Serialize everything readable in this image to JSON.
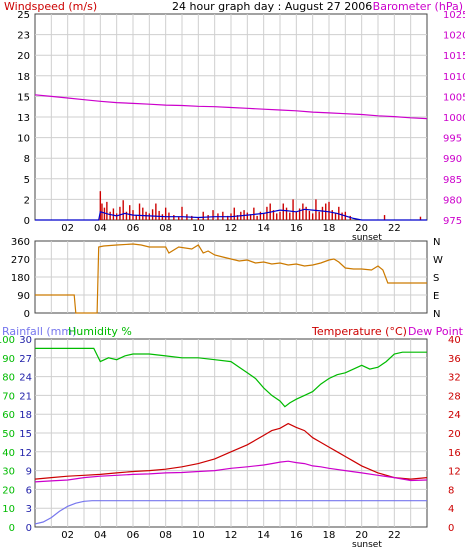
{
  "colors": {
    "windspeed": "#cc0000",
    "wind_avg": "#0000cc",
    "barometer": "#cc00cc",
    "direction": "#cc7a00",
    "rainfall": "#7777ee",
    "humidity": "#00bb00",
    "temperature": "#cc0000",
    "dewpoint": "#cc00cc",
    "grid": "#cfcfcf",
    "label_blue": "#2222aa"
  },
  "chart_data": [
    {
      "type": "line",
      "title": "24 hour graph day : August 27 2006",
      "left_axis_label": "Windspeed (m/s)",
      "right_axis_label": "Barometer (hPa)",
      "annotation": "sunset",
      "sunset_x": 19.5,
      "left_ticks": [
        "0",
        "2",
        "5",
        "8",
        "10",
        "13",
        "15",
        "18",
        "20",
        "23",
        "25"
      ],
      "right_ticks": [
        "975",
        "980",
        "985",
        "990",
        "995",
        "1000",
        "1005",
        "1010",
        "1015",
        "1020",
        "1025"
      ],
      "x_ticks": [
        "02",
        "04",
        "06",
        "08",
        "10",
        "12",
        "14",
        "16",
        "18",
        "20",
        "22"
      ],
      "xlim": [
        0,
        24
      ],
      "ylim_left": [
        0,
        25
      ],
      "ylim_right": [
        975,
        1025
      ],
      "series": [
        {
          "name": "Barometer (hPa)",
          "axis": "right",
          "x": [
            0,
            1,
            2,
            3,
            4,
            5,
            6,
            7,
            8,
            9,
            10,
            11,
            12,
            13,
            14,
            15,
            16,
            17,
            18,
            19,
            20,
            21,
            22,
            23,
            24
          ],
          "y": [
            1005.4,
            1005.0,
            1004.6,
            1004.2,
            1003.8,
            1003.5,
            1003.3,
            1003.1,
            1002.9,
            1002.8,
            1002.6,
            1002.5,
            1002.3,
            1002.1,
            1001.9,
            1001.7,
            1001.5,
            1001.2,
            1001.0,
            1000.8,
            1000.6,
            1000.3,
            1000.1,
            999.8,
            999.6
          ]
        },
        {
          "name": "Windspeed (m/s)",
          "axis": "left",
          "style": "bars",
          "x": [
            4.0,
            4.1,
            4.25,
            4.4,
            4.6,
            4.8,
            5.0,
            5.2,
            5.4,
            5.6,
            5.8,
            6.0,
            6.2,
            6.4,
            6.6,
            6.8,
            7.0,
            7.2,
            7.4,
            7.6,
            7.8,
            8.0,
            8.2,
            8.5,
            8.8,
            9.0,
            9.3,
            9.6,
            10.0,
            10.3,
            10.6,
            10.9,
            11.2,
            11.5,
            11.8,
            12.0,
            12.2,
            12.4,
            12.6,
            12.8,
            13.0,
            13.2,
            13.4,
            13.6,
            13.8,
            14.0,
            14.2,
            14.4,
            14.6,
            14.8,
            15.0,
            15.2,
            15.4,
            15.6,
            15.8,
            16.0,
            16.2,
            16.4,
            16.6,
            16.8,
            17.0,
            17.2,
            17.4,
            17.6,
            17.8,
            18.0,
            18.2,
            18.4,
            18.6,
            18.8,
            19.0,
            19.3,
            21.4,
            23.6
          ],
          "y": [
            3.5,
            2.0,
            1.5,
            2.2,
            1.0,
            1.4,
            0.8,
            1.6,
            2.4,
            1.0,
            1.8,
            1.2,
            0.6,
            2.0,
            1.5,
            1.0,
            0.8,
            1.3,
            2.0,
            1.1,
            0.7,
            1.5,
            0.9,
            0.6,
            0.4,
            1.6,
            0.7,
            0.5,
            0.3,
            1.0,
            0.6,
            1.2,
            0.8,
            1.0,
            0.5,
            0.8,
            1.5,
            0.6,
            1.0,
            1.2,
            0.9,
            0.7,
            1.5,
            0.5,
            1.0,
            0.8,
            1.6,
            2.0,
            1.2,
            0.8,
            1.0,
            2.0,
            1.5,
            0.9,
            2.5,
            1.0,
            1.4,
            2.0,
            1.6,
            1.1,
            0.8,
            2.5,
            1.0,
            1.6,
            2.0,
            2.2,
            1.2,
            0.8,
            1.6,
            0.9,
            1.0,
            0.5,
            0.6,
            0.4
          ]
        },
        {
          "name": "Average windspeed",
          "axis": "left",
          "x": [
            0,
            3.9,
            4.0,
            4.5,
            5.0,
            5.5,
            6.0,
            7.0,
            8.0,
            9.0,
            10.0,
            11.0,
            12.0,
            13.0,
            14.0,
            14.5,
            15.0,
            15.5,
            16.0,
            16.5,
            17.0,
            17.5,
            18.0,
            18.5,
            19.0,
            19.5,
            20.0,
            24
          ],
          "y": [
            0,
            0,
            1.0,
            0.7,
            0.5,
            0.8,
            0.6,
            0.5,
            0.4,
            0.4,
            0.3,
            0.4,
            0.4,
            0.6,
            0.8,
            1.0,
            1.2,
            1.1,
            1.0,
            1.3,
            1.2,
            1.1,
            1.0,
            0.8,
            0.5,
            0.2,
            0,
            0
          ]
        }
      ]
    },
    {
      "type": "line",
      "left_ticks": [
        "0",
        "90",
        "180",
        "270",
        "360"
      ],
      "right_ticks": [
        "N",
        "E",
        "S",
        "W",
        "N"
      ],
      "xlim": [
        0,
        24
      ],
      "ylim": [
        0,
        360
      ],
      "series": [
        {
          "name": "Wind direction",
          "x": [
            0,
            2.4,
            2.5,
            3.8,
            3.9,
            4.2,
            5.0,
            6.0,
            6.5,
            7.0,
            8.0,
            8.2,
            8.8,
            9.6,
            10.0,
            10.3,
            10.6,
            11.0,
            11.5,
            12.0,
            12.5,
            13.0,
            13.5,
            14.0,
            14.5,
            15.0,
            15.5,
            16.0,
            16.5,
            17.0,
            17.5,
            18.0,
            18.3,
            18.6,
            19.0,
            19.5,
            20.0,
            20.6,
            21.0,
            21.3,
            21.6,
            24
          ],
          "y": [
            90,
            90,
            0,
            0,
            330,
            335,
            340,
            345,
            340,
            330,
            330,
            300,
            330,
            320,
            340,
            300,
            310,
            290,
            280,
            270,
            260,
            265,
            250,
            255,
            245,
            250,
            240,
            245,
            235,
            240,
            250,
            265,
            270,
            255,
            225,
            220,
            220,
            215,
            235,
            215,
            150,
            150
          ]
        }
      ]
    },
    {
      "type": "line",
      "rain_label": "Rainfall (mm)",
      "humidity_label": "Humidity %",
      "temperature_label": "Temperature (°C)",
      "dewpoint_label": "Dew Point",
      "annotation": "sunset",
      "sunset_x": 19.5,
      "rain_ticks": [
        "0",
        "3",
        "6",
        "9",
        "12",
        "15",
        "18",
        "21",
        "24",
        "27",
        "30"
      ],
      "humidity_ticks": [
        "0",
        "10",
        "20",
        "30",
        "40",
        "50",
        "60",
        "70",
        "80",
        "90",
        "100"
      ],
      "temperature_ticks": [
        "0",
        "4",
        "8",
        "12",
        "16",
        "20",
        "24",
        "28",
        "32",
        "36",
        "40"
      ],
      "x_ticks": [
        "02",
        "04",
        "06",
        "08",
        "10",
        "12",
        "14",
        "16",
        "18",
        "20",
        "22"
      ],
      "xlim": [
        0,
        24
      ],
      "ylim_rain": [
        0,
        30
      ],
      "ylim_humidity": [
        0,
        100
      ],
      "ylim_temperature": [
        0,
        40
      ],
      "series": [
        {
          "name": "Humidity %",
          "axis": "humidity",
          "x": [
            0,
            1,
            2,
            3,
            3.6,
            4.0,
            4.5,
            5.0,
            5.5,
            6.0,
            7.0,
            8.0,
            9.0,
            10.0,
            11.0,
            12.0,
            12.5,
            13.0,
            13.5,
            14.0,
            14.5,
            15.0,
            15.3,
            15.6,
            16.0,
            16.5,
            17.0,
            17.5,
            18.0,
            18.5,
            19.0,
            19.5,
            20.0,
            20.5,
            21.0,
            21.5,
            22.0,
            22.5,
            23.0,
            24
          ],
          "y": [
            95,
            95,
            95,
            95,
            95,
            88,
            90,
            89,
            91,
            92,
            92,
            91,
            90,
            90,
            89,
            88,
            85,
            82,
            79,
            74,
            70,
            67,
            64,
            66,
            68,
            70,
            72,
            76,
            79,
            81,
            82,
            84,
            86,
            84,
            85,
            88,
            92,
            93,
            93,
            93
          ]
        },
        {
          "name": "Temperature (°C)",
          "axis": "temperature",
          "x": [
            0,
            1,
            2,
            3,
            4,
            5,
            6,
            7,
            8,
            9,
            10,
            11,
            12,
            13,
            14,
            14.5,
            15,
            15.5,
            16,
            16.5,
            17,
            17.5,
            18,
            18.5,
            19,
            19.5,
            20,
            21,
            22,
            23,
            24
          ],
          "y": [
            10.2,
            10.5,
            10.8,
            11.0,
            11.2,
            11.5,
            11.8,
            12.0,
            12.3,
            12.8,
            13.5,
            14.5,
            16.0,
            17.5,
            19.5,
            20.5,
            21.0,
            22.0,
            21.2,
            20.5,
            19.0,
            18.0,
            17.0,
            16.0,
            15.0,
            14.0,
            13.0,
            11.5,
            10.5,
            10.2,
            10.5
          ]
        },
        {
          "name": "Dew Point",
          "axis": "temperature",
          "x": [
            0,
            1,
            2,
            3,
            4,
            5,
            6,
            7,
            8,
            9,
            10,
            11,
            12,
            13,
            14,
            14.5,
            15,
            15.5,
            16,
            16.5,
            17,
            17.5,
            18,
            19,
            20,
            21,
            22,
            23,
            24
          ],
          "y": [
            9.6,
            9.8,
            10.0,
            10.5,
            10.8,
            11.0,
            11.2,
            11.3,
            11.5,
            11.6,
            11.8,
            12.0,
            12.5,
            12.8,
            13.2,
            13.5,
            13.8,
            14.0,
            13.7,
            13.5,
            13.0,
            12.8,
            12.5,
            12.0,
            11.5,
            11.0,
            10.5,
            9.9,
            10.0
          ]
        },
        {
          "name": "Rainfall (mm)",
          "axis": "rain",
          "x": [
            0,
            0.5,
            1.0,
            1.5,
            2.0,
            2.5,
            3.0,
            3.5,
            4.0,
            24
          ],
          "y": [
            0.5,
            0.8,
            1.5,
            2.5,
            3.3,
            3.8,
            4.1,
            4.2,
            4.2,
            4.2
          ]
        }
      ]
    }
  ]
}
